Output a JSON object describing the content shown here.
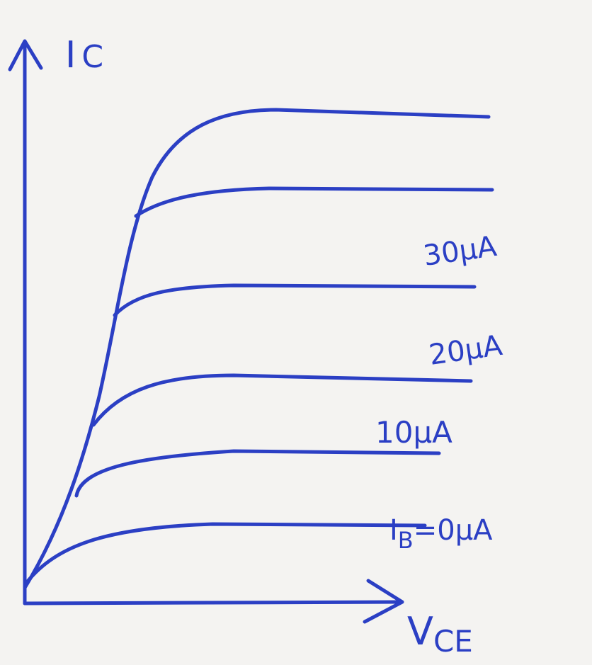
{
  "y_axis": {
    "label": "I",
    "label_sub": "C"
  },
  "x_axis": {
    "label": "V",
    "label_sub": "CE"
  },
  "curves": [
    {
      "label": "30μA"
    },
    {
      "label": "20μA"
    },
    {
      "label": "10μA"
    },
    {
      "label": "I",
      "label_sub": "B",
      "label_rest": "=0μA"
    }
  ]
}
